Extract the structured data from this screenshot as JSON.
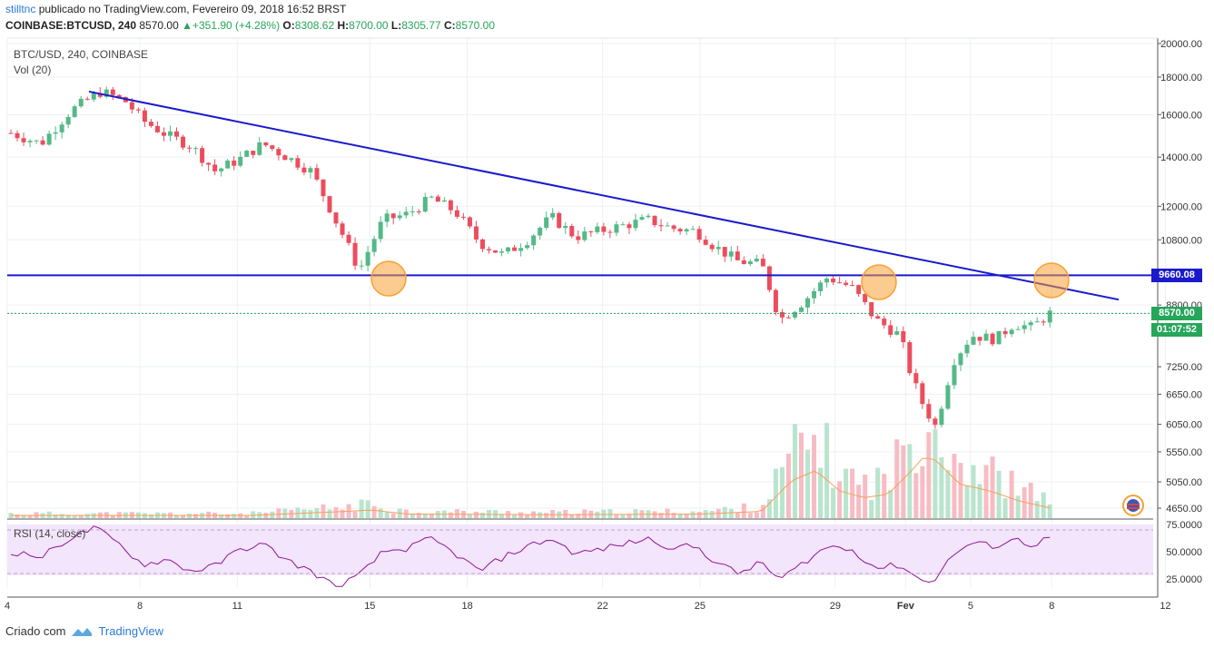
{
  "header": {
    "author": "stilltnc",
    "published_text": "publicado no TradingView.com, Fevereiro 09, 2018 16:52 BRST",
    "symbol_line": "COINBASE:BTCUSD, 240",
    "last_price": "8570.00",
    "change": "+351.90 (+4.28%)",
    "o_label": "O:",
    "o_value": "8308.62",
    "h_label": "H:",
    "h_value": "8700.00",
    "l_label": "L:",
    "l_value": "8305.77",
    "c_label": "C:",
    "c_value": "8570.00"
  },
  "legend": {
    "pair": "BTC/USD, 240, COINBASE",
    "volume": "Vol (20)",
    "rsi": "RSI (14, close)"
  },
  "badges": {
    "level": "9660.08",
    "price": "8570.00",
    "countdown": "01:07:52"
  },
  "footer": {
    "created": "Criado com",
    "brand": "TradingView"
  },
  "colors": {
    "up": "#53b987",
    "down": "#eb4d5c",
    "trend": "#1a1acd",
    "support": "#1a1acd",
    "rsi_line": "#8e1599",
    "rsi_band": "#f3e5fb",
    "marker": "#f7a133",
    "vol_ma": "#f5a05a"
  },
  "chart_data": {
    "type": "candlestick",
    "title": "BTC/USD, 240, COINBASE",
    "y_scale": "log",
    "y_ticks": [
      20000.0,
      18000.0,
      16000.0,
      14000.0,
      12000.0,
      10800.0,
      9660.08,
      8800.0,
      8570.0,
      7250.0,
      6650.0,
      6050.0,
      5550.0,
      5050.0,
      4650.0
    ],
    "y_tick_labels": [
      "20000.00",
      "18000.00",
      "16000.00",
      "14000.00",
      "12000.00",
      "10800.00",
      "8800.00",
      "7250.00",
      "6650.00",
      "6050.00",
      "5550.00",
      "5050.00",
      "4650.00"
    ],
    "x_tick_labels": [
      "4",
      "8",
      "11",
      "15",
      "18",
      "22",
      "25",
      "29",
      "Fev",
      "5",
      "8",
      "12"
    ],
    "rsi_ticks": [
      "75.0000",
      "50.0000",
      "25.0000"
    ],
    "rsi_band": [
      30,
      70
    ],
    "price_path": [
      [
        0,
        15100
      ],
      [
        5,
        14600
      ],
      [
        10,
        16200
      ],
      [
        15,
        17200
      ],
      [
        19,
        16700
      ],
      [
        22,
        15700
      ],
      [
        26,
        15000
      ],
      [
        30,
        14500
      ],
      [
        34,
        13400
      ],
      [
        38,
        13900
      ],
      [
        42,
        14600
      ],
      [
        46,
        14000
      ],
      [
        50,
        13400
      ],
      [
        54,
        11500
      ],
      [
        58,
        9800
      ],
      [
        62,
        11500
      ],
      [
        66,
        11700
      ],
      [
        70,
        12300
      ],
      [
        74,
        11800
      ],
      [
        78,
        10700
      ],
      [
        82,
        10300
      ],
      [
        86,
        10800
      ],
      [
        90,
        11600
      ],
      [
        94,
        10900
      ],
      [
        98,
        11100
      ],
      [
        102,
        11300
      ],
      [
        106,
        11500
      ],
      [
        110,
        11200
      ],
      [
        114,
        11100
      ],
      [
        117,
        10600
      ],
      [
        121,
        10100
      ],
      [
        125,
        10000
      ],
      [
        128,
        8400
      ],
      [
        132,
        8900
      ],
      [
        136,
        9600
      ],
      [
        140,
        9300
      ],
      [
        144,
        8400
      ],
      [
        148,
        8000
      ],
      [
        150,
        7000
      ],
      [
        152,
        6400
      ],
      [
        154,
        6000
      ],
      [
        157,
        7400
      ],
      [
        160,
        8000
      ],
      [
        164,
        7900
      ],
      [
        167,
        8300
      ],
      [
        170,
        8200
      ],
      [
        173,
        8570
      ]
    ],
    "volume_path": [
      [
        0,
        0.04
      ],
      [
        40,
        0.04
      ],
      [
        56,
        0.1
      ],
      [
        60,
        0.12
      ],
      [
        66,
        0.06
      ],
      [
        90,
        0.05
      ],
      [
        115,
        0.06
      ],
      [
        125,
        0.1
      ],
      [
        130,
        0.55
      ],
      [
        134,
        0.7
      ],
      [
        138,
        0.4
      ],
      [
        142,
        0.3
      ],
      [
        146,
        0.35
      ],
      [
        150,
        0.7
      ],
      [
        152,
        0.9
      ],
      [
        154,
        0.85
      ],
      [
        158,
        0.5
      ],
      [
        163,
        0.4
      ],
      [
        168,
        0.25
      ],
      [
        173,
        0.15
      ]
    ],
    "rsi_path": [
      [
        0,
        50
      ],
      [
        5,
        45
      ],
      [
        10,
        63
      ],
      [
        14,
        72
      ],
      [
        18,
        57
      ],
      [
        22,
        38
      ],
      [
        26,
        43
      ],
      [
        30,
        32
      ],
      [
        34,
        37
      ],
      [
        38,
        52
      ],
      [
        42,
        57
      ],
      [
        46,
        42
      ],
      [
        50,
        32
      ],
      [
        54,
        18
      ],
      [
        58,
        28
      ],
      [
        62,
        50
      ],
      [
        66,
        53
      ],
      [
        70,
        62
      ],
      [
        74,
        48
      ],
      [
        78,
        32
      ],
      [
        82,
        45
      ],
      [
        86,
        55
      ],
      [
        90,
        62
      ],
      [
        94,
        48
      ],
      [
        98,
        52
      ],
      [
        102,
        57
      ],
      [
        106,
        62
      ],
      [
        110,
        54
      ],
      [
        114,
        55
      ],
      [
        117,
        42
      ],
      [
        121,
        30
      ],
      [
        125,
        40
      ],
      [
        128,
        24
      ],
      [
        132,
        40
      ],
      [
        136,
        55
      ],
      [
        140,
        52
      ],
      [
        144,
        35
      ],
      [
        148,
        38
      ],
      [
        150,
        30
      ],
      [
        152,
        22
      ],
      [
        154,
        26
      ],
      [
        157,
        48
      ],
      [
        160,
        58
      ],
      [
        164,
        55
      ],
      [
        167,
        62
      ],
      [
        170,
        56
      ],
      [
        173,
        63
      ]
    ],
    "trendline": [
      [
        13,
        17200
      ],
      [
        174,
        8950
      ]
    ],
    "support_level": 9660.08,
    "highlight_circles": [
      [
        61,
        9660
      ],
      [
        138,
        9660
      ],
      [
        173,
        9660
      ]
    ]
  }
}
